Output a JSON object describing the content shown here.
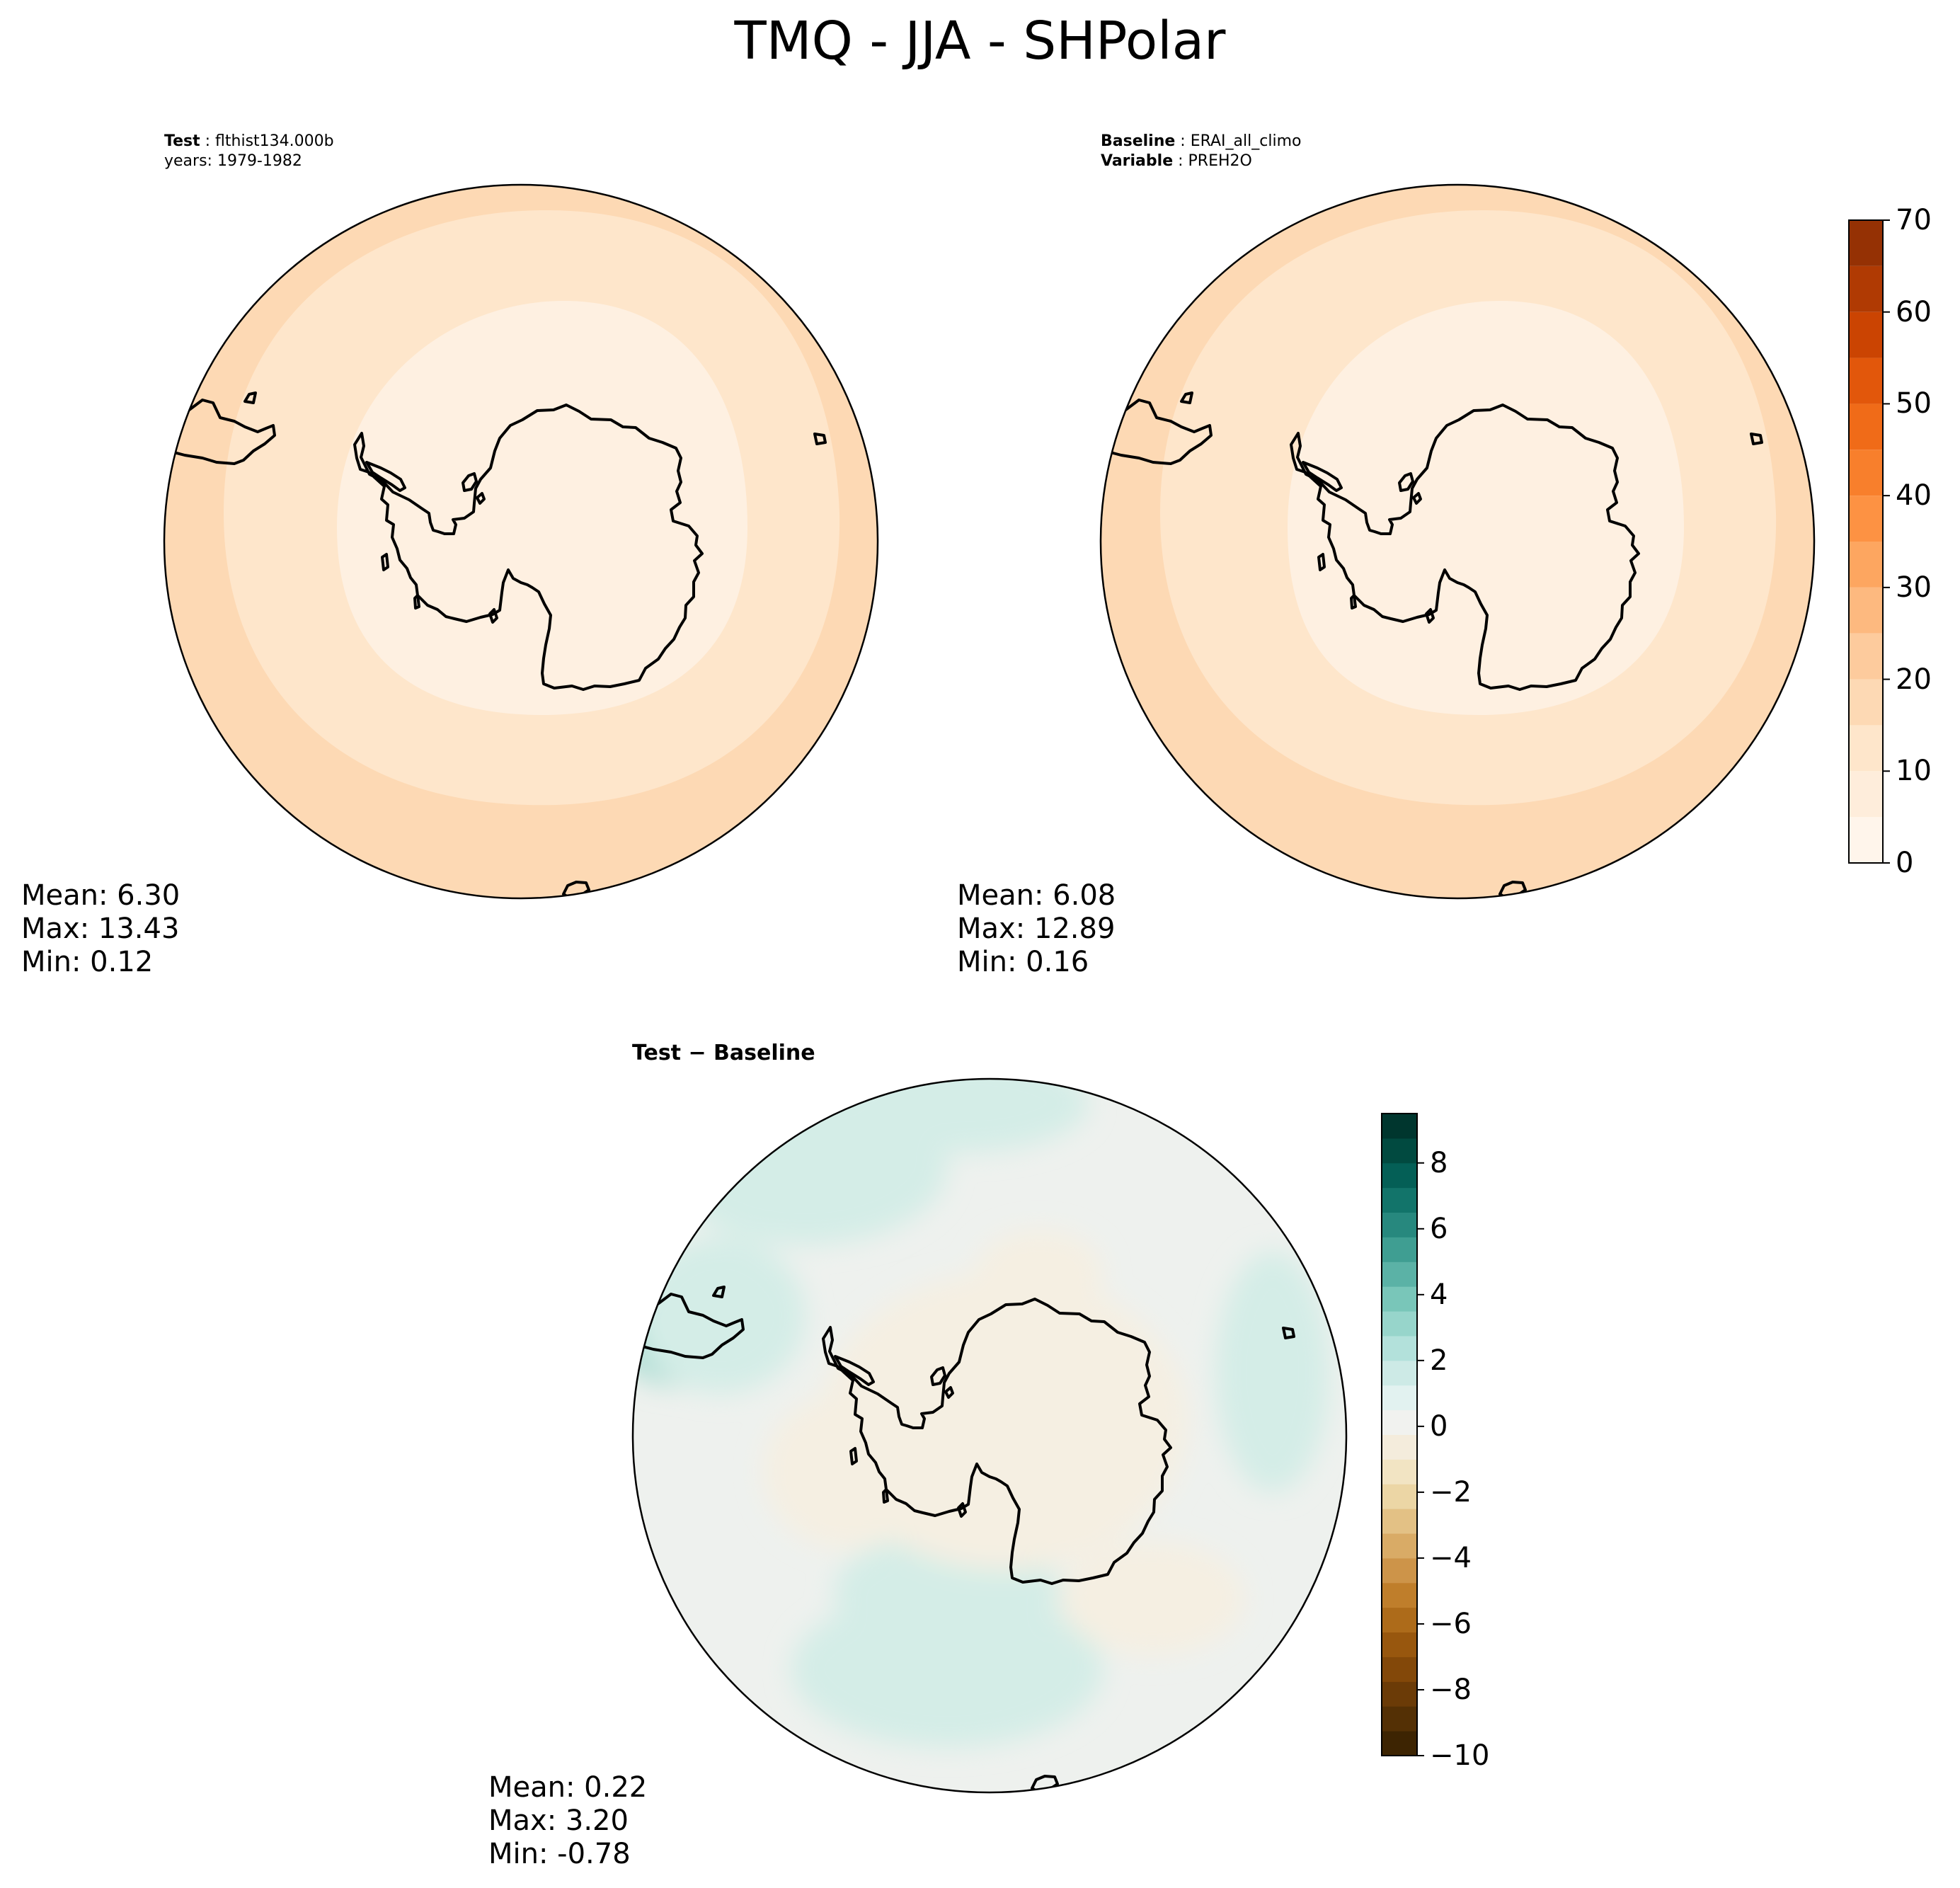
{
  "figure": {
    "title": "TMQ - JJA - SHPolar"
  },
  "panels": {
    "test": {
      "header_label": "Test",
      "header_value": "flthist134.000b",
      "years_line": "years: 1979-1982",
      "stats": {
        "mean": "Mean:  6.30",
        "max": "Max: 13.43",
        "min": "Min:  0.12"
      }
    },
    "baseline": {
      "header_label": "Baseline",
      "header_value": "ERAI_all_climo",
      "variable_label": "Variable",
      "variable_value": "PREH2O",
      "stats": {
        "mean": "Mean:  6.08",
        "max": "Max: 12.89",
        "min": "Min:  0.16"
      }
    },
    "diff": {
      "title": "Test − Baseline",
      "stats": {
        "mean": "Mean:  0.22",
        "max": "Max:  3.20",
        "min": "Min: -0.78"
      }
    }
  },
  "colorbars": {
    "main": {
      "ticks": [
        "0",
        "10",
        "20",
        "30",
        "40",
        "50",
        "60",
        "70"
      ],
      "tick_values": [
        0,
        10,
        20,
        30,
        40,
        50,
        60,
        70
      ],
      "levels": [
        0,
        5,
        10,
        15,
        20,
        25,
        30,
        35,
        40,
        45,
        50,
        55,
        60,
        65,
        70
      ],
      "colors": [
        "#fff5eb",
        "#feeddb",
        "#fee6cb",
        "#fdd9b4",
        "#fdcb9d",
        "#fdb97f",
        "#fda660",
        "#fd9243",
        "#f87f2c",
        "#f06b18",
        "#e2570b",
        "#cb4402",
        "#b03a03",
        "#953104",
        "#7f2704"
      ]
    },
    "diff": {
      "ticks": [
        "8",
        "6",
        "4",
        "2",
        "0",
        "−2",
        "−4",
        "−6",
        "−8",
        "−10"
      ],
      "tick_values": [
        8,
        6,
        4,
        2,
        0,
        -2,
        -4,
        -6,
        -8,
        -10
      ],
      "min": -10,
      "max": 9.5,
      "level_step": 0.95,
      "colors_low_to_high": [
        "#3d2402",
        "#543005",
        "#6b3b07",
        "#834809",
        "#98570e",
        "#ad6b1a",
        "#bf7e2b",
        "#cd9449",
        "#d9ab66",
        "#e3c185",
        "#ecd6a5",
        "#f2e4c3",
        "#f4ecdc",
        "#f1f2ef",
        "#e2f2f0",
        "#cdeae6",
        "#b3e1db",
        "#97d5cb",
        "#79c6b9",
        "#5bb2a6",
        "#3f9e92",
        "#27887e",
        "#12746a",
        "#045f56",
        "#014a40",
        "#00362e"
      ]
    }
  },
  "map_colors": {
    "outer_band": "#fdd9b4",
    "middle_band": "#fee6cb",
    "inner_band": "#fef0e1",
    "diff_background": "#eef1ee",
    "diff_positive": "#d4ede7",
    "diff_positive_strong": "#a9dcd2",
    "diff_negative": "#f5efe2",
    "coastline": "#000000"
  }
}
